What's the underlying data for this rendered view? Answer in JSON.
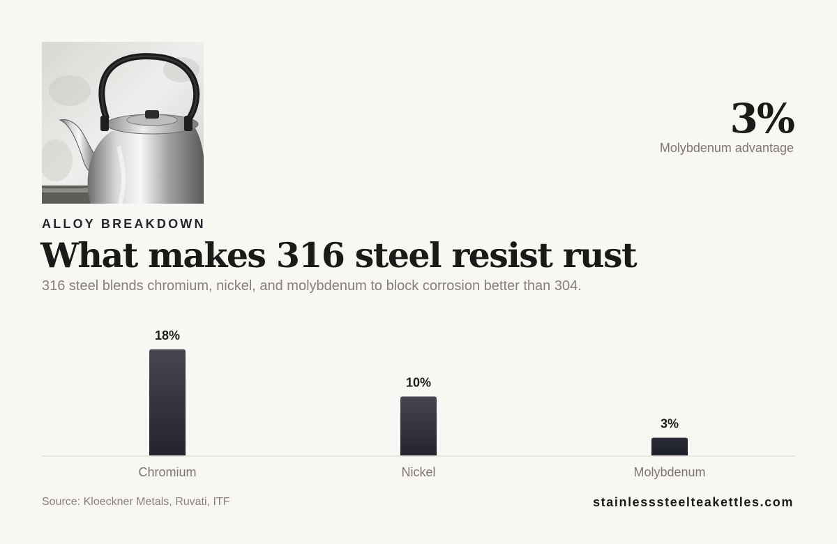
{
  "header": {
    "photo_alt": "Aluminum stovetop kettle",
    "eyebrow": "ALLOY BREAKDOWN",
    "title": "What makes 316 steel resist rust",
    "subtitle": "316 steel blends chromium, nickel, and molybdenum to block corrosion better than 304."
  },
  "stat": {
    "value": "3%",
    "label": "Molybdenum advantage"
  },
  "chart_data": {
    "type": "bar",
    "categories": [
      "Chromium",
      "Nickel",
      "Molybdenum"
    ],
    "values": [
      18,
      10,
      3
    ],
    "value_labels": [
      "18%",
      "10%",
      "3%"
    ],
    "title": "",
    "xlabel": "",
    "ylabel": "",
    "ylim": [
      0,
      18
    ],
    "grid": false,
    "legend": "none",
    "colors": {
      "bar_top": "#45464f",
      "bar_bottom": "#23242c",
      "bar_highlight_top": "#2a2c38",
      "bar_highlight_bottom": "#1c1e28",
      "baseline": "#d9d6d0",
      "value_label": "#1c1b19",
      "category_label": "#7c7770"
    }
  },
  "footer": {
    "source": "Source: Kloeckner Metals, Ruvati, ITF",
    "brand": "stainlesssteelteakettles.com"
  }
}
